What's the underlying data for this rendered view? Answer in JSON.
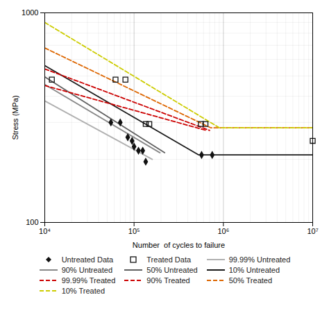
{
  "chart_data": {
    "type": "line",
    "xlabel": "Number  of cycles to failure",
    "ylabel": "Stress (MPa)",
    "log": true,
    "grid": true,
    "legend": "bottom",
    "xlim": [
      10000,
      10000000
    ],
    "ylim": [
      100,
      1000
    ],
    "xticks": [
      {
        "value": 10000,
        "label": "10⁴"
      },
      {
        "value": 100000,
        "label": "10⁵"
      },
      {
        "value": 1000000,
        "label": "10⁶"
      },
      {
        "value": 10000000,
        "label": "10⁷"
      }
    ],
    "yticks": [
      100,
      1000
    ],
    "series": [
      {
        "name": "Untreated Data",
        "type": "scatter",
        "marker": "diamond",
        "color": "#111111",
        "x": [
          55000,
          70000,
          85000,
          95000,
          100000,
          112000,
          125000,
          135000,
          570000,
          750000
        ],
        "values": [
          300,
          300,
          255,
          245,
          230,
          220,
          220,
          195,
          210,
          210
        ]
      },
      {
        "name": "Treated Data",
        "type": "scatter",
        "marker": "open_square",
        "color": "#111111",
        "x": [
          12000,
          62000,
          80000,
          135000,
          148000,
          560000,
          630000,
          10000000
        ],
        "values": [
          480,
          480,
          480,
          295,
          295,
          295,
          295,
          245
        ]
      },
      {
        "name": "99.99% Untreated",
        "type": "line",
        "line_style": "solid",
        "color": "#b0b0b0",
        "x": [
          10000,
          160000
        ],
        "values": [
          380,
          200
        ]
      },
      {
        "name": "90% Untreated",
        "type": "line",
        "line_style": "solid",
        "color": "#888888",
        "x": [
          10000,
          195000
        ],
        "values": [
          455,
          215
        ]
      },
      {
        "name": "50% Untreated",
        "type": "line",
        "line_style": "solid",
        "color": "#606060",
        "x": [
          10000,
          220000
        ],
        "values": [
          495,
          215
        ]
      },
      {
        "name": "10% Untreated",
        "type": "line",
        "line_style": "solid",
        "color": "#1a1a1a",
        "x": [
          10000,
          530000,
          10000000
        ],
        "values": [
          560,
          210,
          210
        ]
      },
      {
        "name": "99.99% Treated",
        "type": "line",
        "line_style": "dashed",
        "color": "#cc0000",
        "x": [
          10000,
          640000
        ],
        "values": [
          450,
          275
        ]
      },
      {
        "name": "90% Treated",
        "type": "line",
        "line_style": "dashed",
        "color": "#cc0000",
        "x": [
          10000,
          700000
        ],
        "values": [
          540,
          275
        ]
      },
      {
        "name": "50% Treated",
        "type": "line",
        "line_style": "dashed",
        "color": "#dd6600",
        "x": [
          10000,
          720000,
          10000000
        ],
        "values": [
          680,
          283,
          283
        ]
      },
      {
        "name": "10% Treated",
        "type": "line",
        "line_style": "dashed",
        "color": "#cccc00",
        "x": [
          10000,
          900000,
          10000000
        ],
        "values": [
          900,
          283,
          283
        ]
      }
    ]
  }
}
